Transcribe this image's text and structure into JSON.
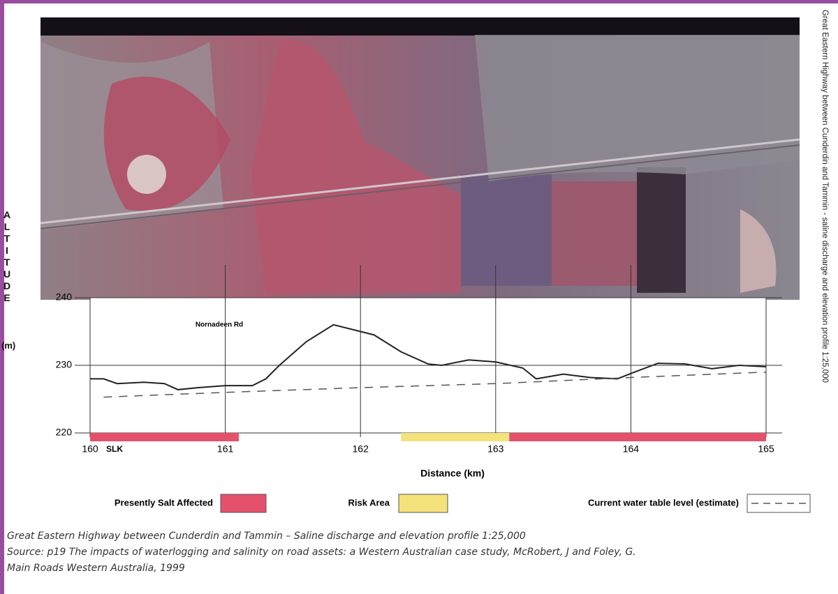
{
  "chart_data": {
    "type": "line",
    "vertical_title": "Great Eastern Highway between Cunderdin and Tammin - saline discharge and elevation profile 1:25,000",
    "y_label": "ALTITUDE",
    "y_unit": "(m)",
    "x_label": "Distance (km)",
    "annotations": [
      "Nornadeen Rd",
      "SLK"
    ],
    "xlim": [
      160,
      165
    ],
    "xticks": [
      160,
      161,
      162,
      163,
      164,
      165
    ],
    "ylim": [
      220,
      240
    ],
    "yticks": [
      220,
      230,
      240
    ],
    "grid": true,
    "series": [
      {
        "color": "#222222",
        "line_style": "solid",
        "x": [
          160,
          160.1,
          160.2,
          160.4,
          160.55,
          160.65,
          160.8,
          161,
          161.2,
          161.3,
          161.4,
          161.6,
          161.8,
          162,
          162.1,
          162.3,
          162.5,
          162.6,
          162.8,
          163,
          163.2,
          163.3,
          163.5,
          163.7,
          163.9,
          164,
          164.2,
          164.4,
          164.6,
          164.8,
          165
        ],
        "values": [
          228,
          228,
          227.3,
          227.5,
          227.3,
          226.4,
          226.7,
          227,
          227,
          228,
          230,
          233.5,
          236,
          235,
          234.5,
          232,
          230.2,
          230,
          230.8,
          230.5,
          229.6,
          228,
          228.7,
          228.2,
          228,
          228.8,
          230.3,
          230.2,
          229.5,
          230,
          229.8
        ]
      },
      {
        "name": "Current water table level (estimate)",
        "color": "#555555",
        "line_style": "dashed",
        "x": [
          160.1,
          161,
          162,
          163,
          164,
          165
        ],
        "values": [
          225.3,
          226,
          226.7,
          227.3,
          228.2,
          229
        ]
      }
    ],
    "zones": [
      {
        "name": "Presently Salt Affected",
        "color": "#e5506b",
        "ranges": [
          [
            160,
            161.1
          ],
          [
            163.1,
            165
          ]
        ]
      },
      {
        "name": "Risk Area",
        "color": "#f4e27a",
        "ranges": [
          [
            162.3,
            163.1
          ]
        ]
      }
    ]
  },
  "caption": {
    "lines": [
      "Great Eastern Highway between Cunderdin and Tammin – Saline discharge and elevation profile 1:25,000",
      "Source: p19 The impacts of waterlogging and salinity on road assets: a Western Australian case study, McRobert, J and Foley, G.",
      "Main Roads Western Australia, 1999"
    ]
  }
}
